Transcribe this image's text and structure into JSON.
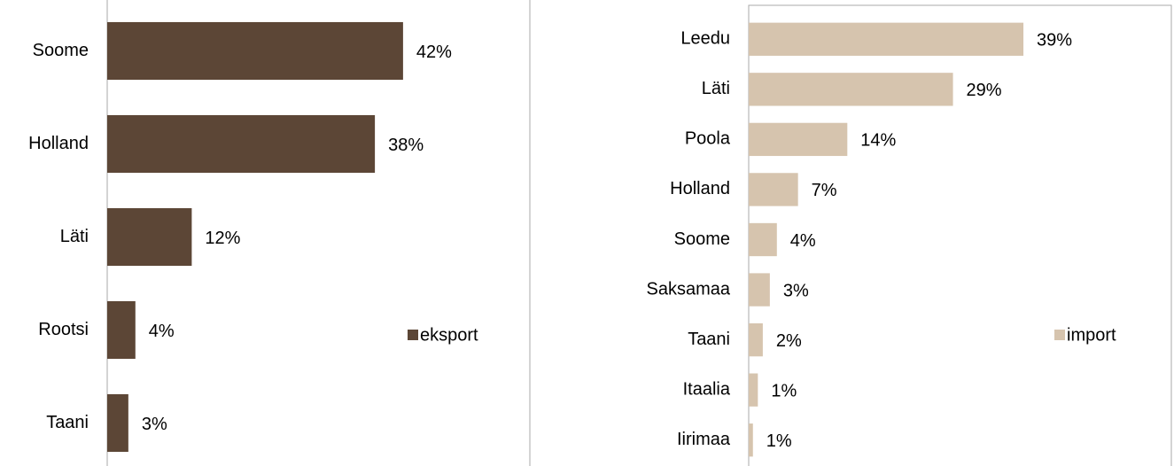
{
  "chart_data": [
    {
      "type": "bar",
      "orientation": "horizontal",
      "categories": [
        "Soome",
        "Holland",
        "Läti",
        "Rootsi",
        "Taani"
      ],
      "series": [
        {
          "name": "eksport",
          "color": "#5c4636",
          "values": [
            42,
            38,
            12,
            4,
            3
          ],
          "value_labels": [
            "42%",
            "38%",
            "12%",
            "4%",
            "3%"
          ]
        }
      ],
      "xlim": [
        0,
        60
      ],
      "legend": "right"
    },
    {
      "type": "bar",
      "orientation": "horizontal",
      "categories": [
        "Leedu",
        "Läti",
        "Poola",
        "Holland",
        "Soome",
        "Saksamaa",
        "Taani",
        "Itaalia",
        "Iirimaa"
      ],
      "series": [
        {
          "name": "import",
          "color": "#d6c4ae",
          "values": [
            39,
            29,
            14,
            7,
            4,
            3,
            2,
            1.3,
            0.6
          ],
          "value_labels": [
            "39%",
            "29%",
            "14%",
            "7%",
            "4%",
            "3%",
            "2%",
            "1%",
            "1%"
          ]
        }
      ],
      "xlim": [
        0,
        60
      ],
      "legend": "right"
    }
  ]
}
